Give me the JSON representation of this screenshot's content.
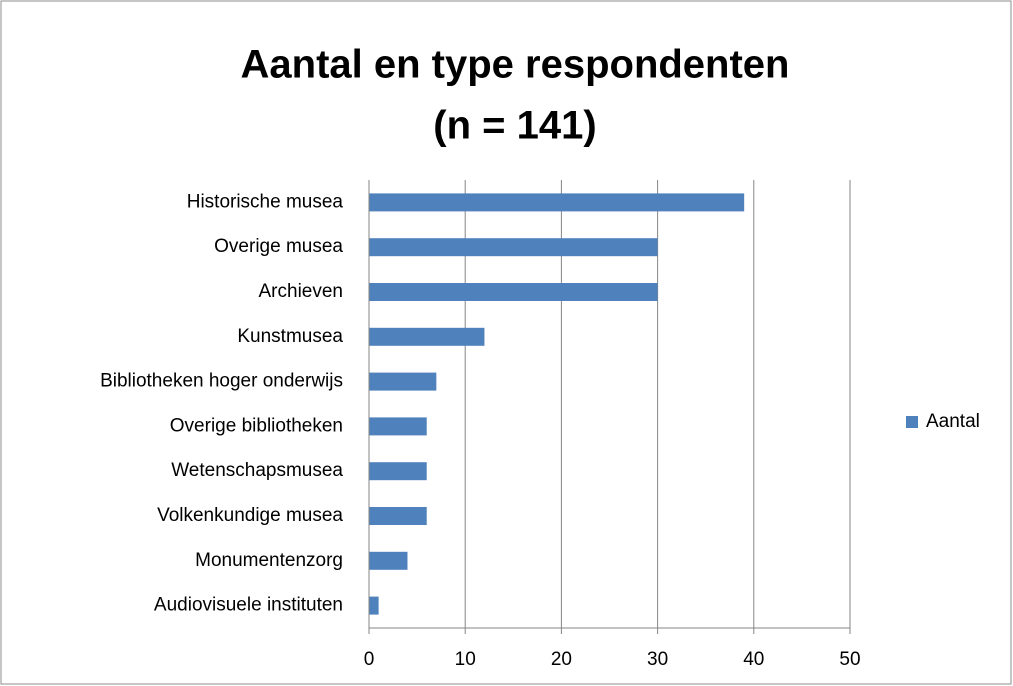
{
  "chart_data": {
    "type": "barh",
    "title": "Aantal en type respondenten",
    "subtitle": "(n = 141)",
    "categories": [
      "Historische musea",
      "Overige musea",
      "Archieven",
      "Kunstmusea",
      "Bibliotheken hoger onderwijs",
      "Overige bibliotheken",
      "Wetenschapsmusea",
      "Volkenkundige musea",
      "Monumentenzorg",
      "Audiovisuele instituten"
    ],
    "series": [
      {
        "name": "Aantal",
        "color": "#4f81bd",
        "values": [
          39,
          30,
          30,
          12,
          7,
          6,
          6,
          6,
          4,
          1
        ]
      }
    ],
    "xlim": [
      0,
      50
    ],
    "xticks": [
      0,
      10,
      20,
      30,
      40,
      50
    ],
    "grid": true,
    "legend": "right"
  }
}
